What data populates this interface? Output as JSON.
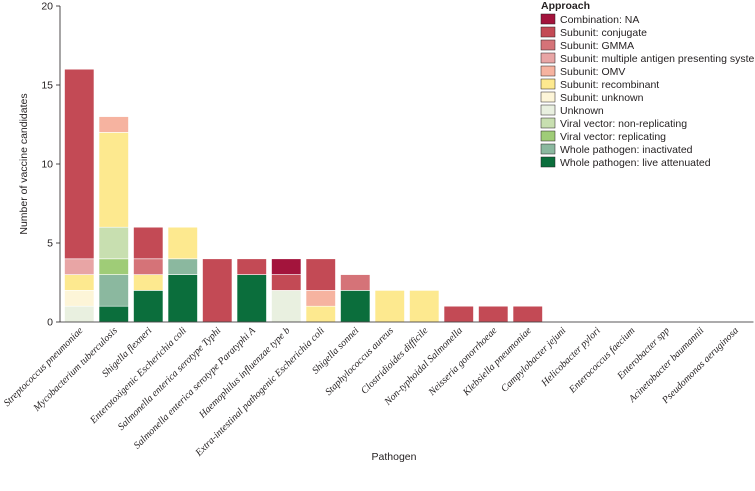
{
  "chart_data": {
    "type": "bar",
    "stacked": true,
    "title": "",
    "xlabel": "Pathogen",
    "ylabel": "Number of vaccine candidates",
    "ylim": [
      0,
      20
    ],
    "yticks": [
      0,
      5,
      10,
      15,
      20
    ],
    "grid": false,
    "legend_title": "Approach",
    "legend_position": "top-right",
    "categories": [
      "Streptococcus pneumoniae",
      "Mycobacterium tuberculosis",
      "Shigella flexneri",
      "Enterotoxigenic Escherichia coli",
      "Salmonella enterica serotype Typhi",
      "Salmonella enterica serotype Paratyphi A",
      "Haemophilus influenzae type b",
      "Extra-intestinal pathogenic Escherichia coli",
      "Shigella sonnei",
      "Staphylococcus aureus",
      "Clostridioides difficile",
      "Non-typhoidal Salmonella",
      "Neisseria gonorrhoeae",
      "Klebsiella pneumoniae",
      "Campylobacter jejuni",
      "Helicobacter pylori",
      "Enterococcus faecium",
      "Enterobacter spp",
      "Acinetobacter baumannii",
      "Pseudomonas aeruginosa"
    ],
    "series": [
      {
        "name": "Combination: NA",
        "color": "#a3143c",
        "values": [
          0,
          0,
          0,
          0,
          0,
          0,
          1,
          0,
          0,
          0,
          0,
          0,
          0,
          0,
          0,
          0,
          0,
          0,
          0,
          0
        ]
      },
      {
        "name": "Subunit: conjugate",
        "color": "#c34a55",
        "values": [
          12,
          0,
          2,
          0,
          4,
          1,
          1,
          2,
          0,
          0,
          0,
          1,
          1,
          1,
          0,
          0,
          0,
          0,
          0,
          0
        ]
      },
      {
        "name": "Subunit: GMMA",
        "color": "#d57378",
        "values": [
          0,
          0,
          1,
          0,
          0,
          0,
          0,
          0,
          1,
          0,
          0,
          0,
          0,
          0,
          0,
          0,
          0,
          0,
          0,
          0
        ]
      },
      {
        "name": "Subunit: multiple antigen presenting system",
        "color": "#e8a5a5",
        "values": [
          1,
          0,
          0,
          0,
          0,
          0,
          0,
          0,
          0,
          0,
          0,
          0,
          0,
          0,
          0,
          0,
          0,
          0,
          0,
          0
        ]
      },
      {
        "name": "Subunit: OMV",
        "color": "#f6b3a0",
        "values": [
          0,
          1,
          0,
          0,
          0,
          0,
          0,
          1,
          0,
          0,
          0,
          0,
          0,
          0,
          0,
          0,
          0,
          0,
          0,
          0
        ]
      },
      {
        "name": "Subunit: recombinant",
        "color": "#fde98f",
        "values": [
          1,
          6,
          1,
          2,
          0,
          0,
          0,
          1,
          0,
          2,
          2,
          0,
          0,
          0,
          0,
          0,
          0,
          0,
          0,
          0
        ]
      },
      {
        "name": "Subunit: unknown",
        "color": "#fdf5d8",
        "values": [
          1,
          0,
          0,
          0,
          0,
          0,
          0,
          0,
          0,
          0,
          0,
          0,
          0,
          0,
          0,
          0,
          0,
          0,
          0,
          0
        ]
      },
      {
        "name": "Unknown",
        "color": "#e9f0e0",
        "values": [
          1,
          0,
          0,
          0,
          0,
          0,
          2,
          0,
          0,
          0,
          0,
          0,
          0,
          0,
          0,
          0,
          0,
          0,
          0,
          0
        ]
      },
      {
        "name": "Viral vector: non-replicating",
        "color": "#c8dfb0",
        "values": [
          0,
          2,
          0,
          0,
          0,
          0,
          0,
          0,
          0,
          0,
          0,
          0,
          0,
          0,
          0,
          0,
          0,
          0,
          0,
          0
        ]
      },
      {
        "name": "Viral vector: replicating",
        "color": "#9fcc77",
        "values": [
          0,
          1,
          0,
          0,
          0,
          0,
          0,
          0,
          0,
          0,
          0,
          0,
          0,
          0,
          0,
          0,
          0,
          0,
          0,
          0
        ]
      },
      {
        "name": "Whole pathogen: inactivated",
        "color": "#8bb89f",
        "values": [
          0,
          2,
          0,
          1,
          0,
          0,
          0,
          0,
          0,
          0,
          0,
          0,
          0,
          0,
          0,
          0,
          0,
          0,
          0,
          0
        ]
      },
      {
        "name": "Whole pathogen: live attenuated",
        "color": "#0b6e3c",
        "values": [
          0,
          1,
          2,
          3,
          0,
          3,
          0,
          0,
          2,
          0,
          0,
          0,
          0,
          0,
          0,
          0,
          0,
          0,
          0,
          0
        ]
      }
    ]
  }
}
